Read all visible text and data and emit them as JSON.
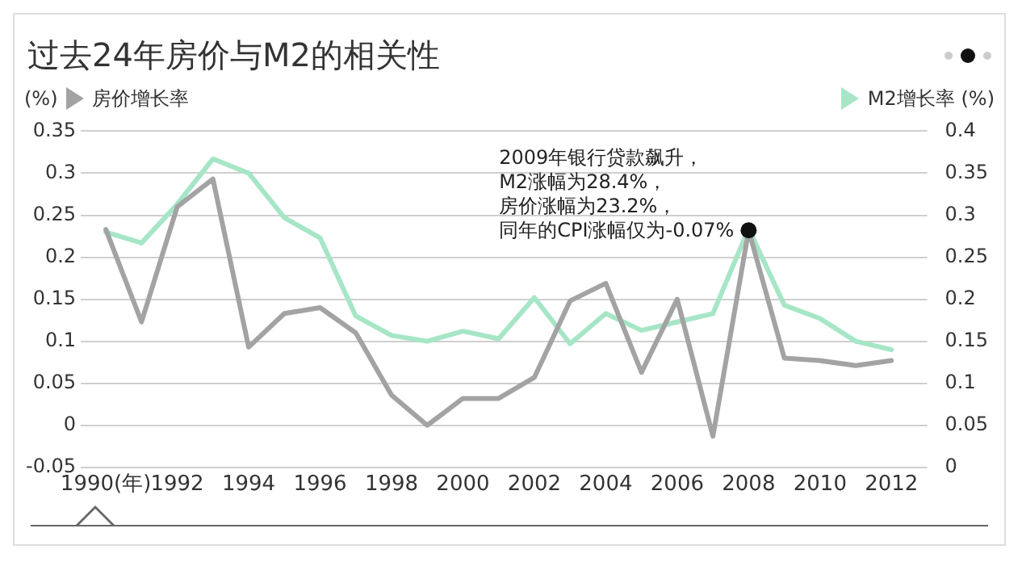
{
  "chart_data": {
    "type": "line",
    "title": "过去24年房价与M2的相关性",
    "ylabel": "(%)",
    "y2label": "(%)",
    "x": [
      1990,
      1991,
      1992,
      1993,
      1994,
      1995,
      1996,
      1997,
      1998,
      1999,
      2000,
      2001,
      2002,
      2003,
      2004,
      2005,
      2006,
      2007,
      2008,
      2009,
      2010,
      2011,
      2012
    ],
    "series": [
      {
        "name": "房价增长率",
        "color": "#a3a3a3",
        "values": [
          0.233,
          0.123,
          0.26,
          0.293,
          0.093,
          0.133,
          0.14,
          0.11,
          0.036,
          0,
          0.032,
          0.032,
          0.057,
          0.148,
          0.169,
          0.063,
          0.15,
          -0.013,
          0.232,
          0.08,
          0.077,
          0.071,
          0.077
        ]
      },
      {
        "name": "M2增长率",
        "color": "#a6e6c6",
        "axis": "y2",
        "values": [
          0.28,
          0.267,
          0.313,
          0.367,
          0.35,
          0.297,
          0.273,
          0.18,
          0.157,
          0.15,
          0.162,
          0.153,
          0.202,
          0.147,
          0.183,
          0.163,
          0.173,
          0.183,
          0.284,
          0.193,
          0.177,
          0.15,
          0.14
        ]
      }
    ],
    "xlim": [
      1989.3,
      2013
    ],
    "xticks": [
      {
        "value": 1990,
        "label": "1990(年)"
      },
      1992,
      1994,
      1996,
      1998,
      2000,
      2002,
      2004,
      2006,
      2008,
      2010,
      2012
    ],
    "ylim": [
      -0.05,
      0.35
    ],
    "yticks": [
      -0.05,
      0,
      0.05,
      0.1,
      0.15,
      0.2,
      0.25,
      0.3,
      0.35
    ],
    "y2lim": [
      0,
      0.4
    ],
    "y2ticks": [
      0,
      0.05,
      0.1,
      0.15,
      0.2,
      0.25,
      0.3,
      0.35,
      0.4
    ],
    "grid": "y",
    "legend": "top",
    "marker": "none",
    "line_style": "solid",
    "annotations": [
      "2009年银行贷款飙升，",
      "M2涨幅为28.4%，",
      "房价涨幅为23.2%，",
      {
        "text": "同年的CPI涨幅仅为-0.07%",
        "x": 2008,
        "y": 0.232
      }
    ]
  }
}
